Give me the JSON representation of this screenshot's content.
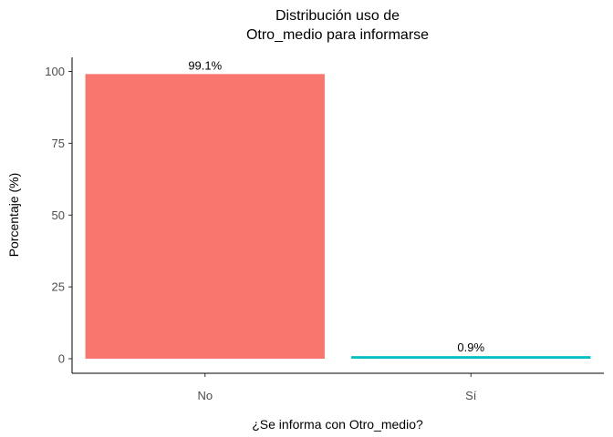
{
  "chart_data": {
    "type": "bar",
    "title_lines": [
      "Distribución uso de",
      "Otro_medio para informarse"
    ],
    "xlabel": "¿Se informa con Otro_medio?",
    "ylabel": "Porcentaje (%)",
    "categories": [
      "No",
      "Sí"
    ],
    "values": [
      99.1,
      0.9
    ],
    "data_labels": [
      "99.1%",
      "0.9%"
    ],
    "colors": [
      "#F8766D",
      "#00BFC4"
    ],
    "ylim": [
      0,
      104.5
    ],
    "yticks": [
      0,
      25,
      50,
      75,
      100
    ],
    "ytick_labels": [
      "0",
      "25",
      "50",
      "75",
      "100"
    ],
    "grid": false,
    "legend": "none"
  }
}
